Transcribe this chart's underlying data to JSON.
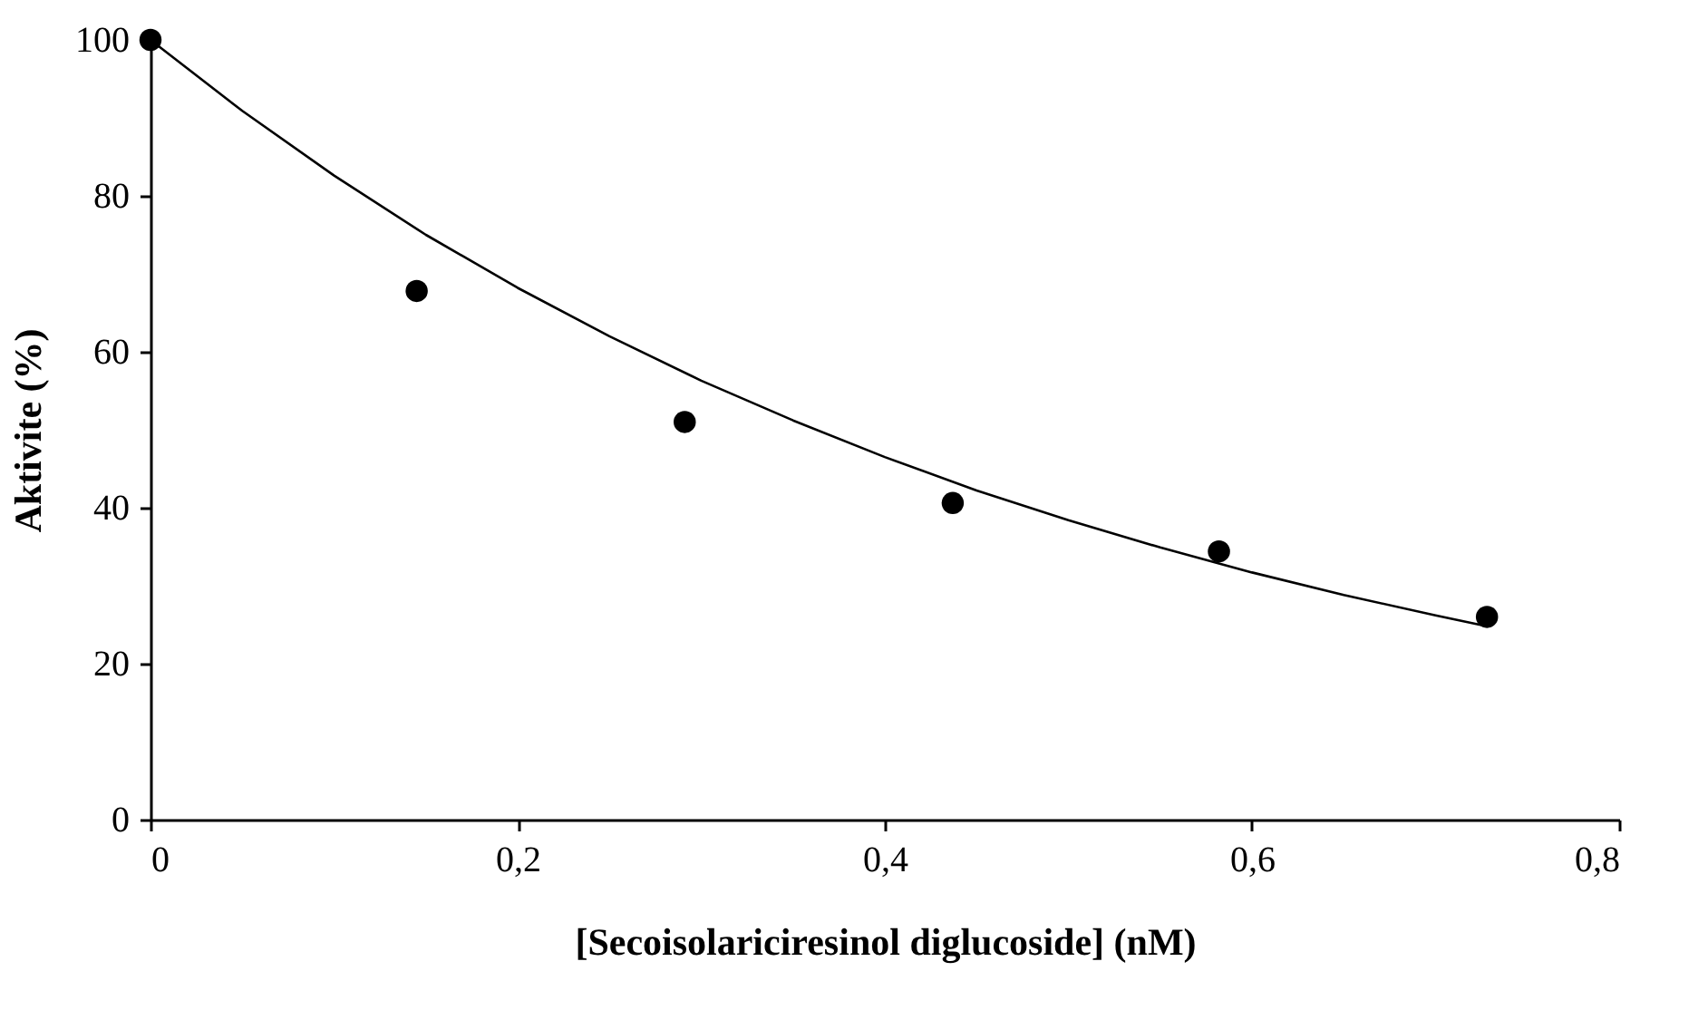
{
  "chart_data": {
    "type": "scatter",
    "xlabel": "[Secoisolariciresinol diglucoside] (nM)",
    "ylabel": "Aktivite (%)",
    "xlim": [
      0,
      0.8
    ],
    "ylim": [
      0,
      100
    ],
    "xticks": [
      0,
      {
        "value": 0.2,
        "label": "0,2"
      },
      {
        "value": 0.4,
        "label": "0,4"
      },
      {
        "value": 0.6,
        "label": "0,6"
      },
      {
        "value": 0.8,
        "label": "0,8"
      }
    ],
    "yticks": [
      0,
      20,
      40,
      60,
      80,
      100
    ],
    "grid": false,
    "series": [
      {
        "color": "#000000",
        "marker": "circle",
        "x": [
          0,
          0.145,
          0.291,
          0.437,
          0.582,
          0.728
        ],
        "values": [
          100,
          67.8,
          51.0,
          40.6,
          34.4,
          26.0
        ]
      },
      {
        "type": "line",
        "color": "#000000",
        "marker": "none",
        "line_style": "solid",
        "x": [
          0,
          0.05,
          0.1,
          0.15,
          0.2,
          0.25,
          0.3,
          0.35,
          0.4,
          0.45,
          0.5,
          0.55,
          0.6,
          0.65,
          0.7,
          0.728
        ],
        "values": [
          100,
          90.9,
          82.6,
          75.0,
          68.2,
          62.0,
          56.3,
          51.2,
          46.5,
          42.2,
          38.4,
          34.9,
          31.7,
          28.8,
          26.2,
          24.8
        ]
      }
    ]
  }
}
